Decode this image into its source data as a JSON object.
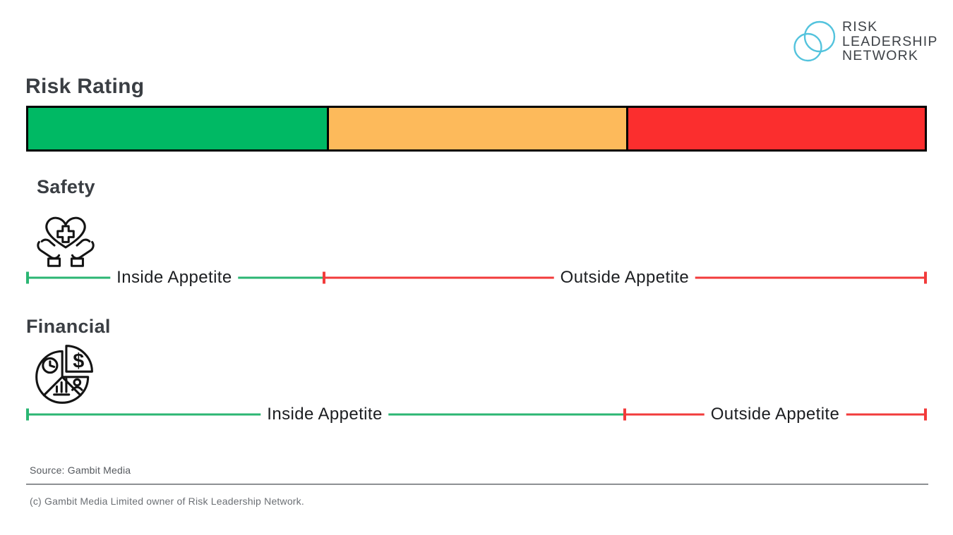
{
  "logo": {
    "lines": [
      "RISK",
      "LEADERSHIP",
      "NETWORK"
    ],
    "mark_color": "#53C3DD",
    "text_color": "#3E4247"
  },
  "title": "Risk Rating",
  "colors": {
    "green": "#00B964",
    "amber": "#FDBA5B",
    "red": "#FB2E2E",
    "line_green": "#2BB673",
    "line_red": "#F23B3B",
    "bar_border": "#000000",
    "heading": "#3A3E43",
    "label": "#1C1E21"
  },
  "rating_bar": {
    "segments": [
      {
        "name": "green",
        "color": "#00B964",
        "fraction": 0.3333
      },
      {
        "name": "amber",
        "color": "#FDBA5B",
        "fraction": 0.3333
      },
      {
        "name": "red",
        "color": "#FB2E2E",
        "fraction": 0.3334
      }
    ]
  },
  "rows": [
    {
      "label": "Safety",
      "icon": "heart-in-hands-icon",
      "inside_label": "Inside Appetite",
      "outside_label": "Outside Appetite",
      "inside_percent": 32.9
    },
    {
      "label": "Financial",
      "icon": "finance-pie-chart-icon",
      "inside_label": "Inside Appetite",
      "outside_label": "Outside Appetite",
      "inside_percent": 66.3
    }
  ],
  "footer": {
    "source": "Source: Gambit Media",
    "copyright": "(c) Gambit Media Limited owner of Risk Leadership Network."
  },
  "chart_data": {
    "type": "bar",
    "title": "Risk Rating",
    "description": "Risk appetite scale per category: green span = Inside Appetite, red span = Outside Appetite, as percent of full scale width. Top scale bar is split into three equal green/amber/red thirds.",
    "scale_segments": [
      {
        "label": "green",
        "fraction": 0.333,
        "color": "#00B964"
      },
      {
        "label": "amber",
        "fraction": 0.333,
        "color": "#FDBA5B"
      },
      {
        "label": "red",
        "fraction": 0.333,
        "color": "#FB2E2E"
      }
    ],
    "categories": [
      "Safety",
      "Financial"
    ],
    "series": [
      {
        "name": "Inside Appetite",
        "values": [
          33,
          66
        ],
        "color": "#2BB673"
      },
      {
        "name": "Outside Appetite",
        "values": [
          67,
          34
        ],
        "color": "#F23B3B"
      }
    ],
    "xlim": [
      0,
      100
    ],
    "grid": false,
    "legend_position": "inline"
  }
}
